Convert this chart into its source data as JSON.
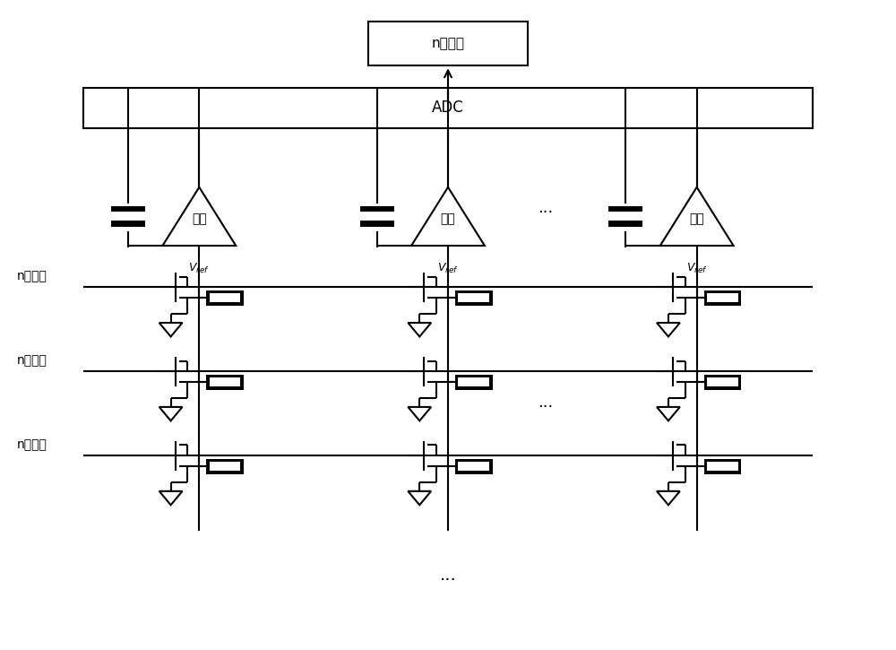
{
  "bg_color": "#ffffff",
  "line_color": "#000000",
  "text_color": "#000000",
  "output_box_text": "n位输出",
  "adc_text": "ADC",
  "opamp_text": "运放",
  "vref_text": "$V_{ref}$",
  "input_text": "n位输入",
  "ellipsis": "...",
  "lw": 1.5
}
